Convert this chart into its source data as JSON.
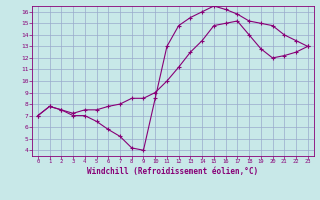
{
  "xlabel": "Windchill (Refroidissement éolien,°C)",
  "bg_color": "#c8e8e8",
  "grid_color": "#99aacc",
  "line_color": "#880077",
  "xlim": [
    -0.5,
    23.5
  ],
  "ylim": [
    3.5,
    16.5
  ],
  "xticks": [
    0,
    1,
    2,
    3,
    4,
    5,
    6,
    7,
    8,
    9,
    10,
    11,
    12,
    13,
    14,
    15,
    16,
    17,
    18,
    19,
    20,
    21,
    22,
    23
  ],
  "yticks": [
    4,
    5,
    6,
    7,
    8,
    9,
    10,
    11,
    12,
    13,
    14,
    15,
    16
  ],
  "series1_x": [
    0,
    1,
    2,
    3,
    4,
    5,
    6,
    7,
    8,
    9,
    10,
    11,
    12,
    13,
    14,
    15,
    16,
    17,
    18,
    19,
    20,
    21,
    22,
    23
  ],
  "series1_y": [
    7.0,
    7.8,
    7.5,
    7.0,
    7.0,
    6.5,
    5.8,
    5.2,
    4.2,
    4.0,
    8.5,
    13.0,
    14.8,
    15.5,
    16.0,
    16.5,
    16.2,
    15.8,
    15.2,
    15.0,
    14.8,
    14.0,
    13.5,
    13.0
  ],
  "series2_x": [
    0,
    1,
    2,
    3,
    4,
    5,
    6,
    7,
    8,
    9,
    10,
    11,
    12,
    13,
    14,
    15,
    16,
    17,
    18,
    19,
    20,
    21,
    22,
    23
  ],
  "series2_y": [
    7.0,
    7.8,
    7.5,
    7.2,
    7.5,
    7.5,
    7.8,
    8.0,
    8.5,
    8.5,
    9.0,
    10.0,
    11.2,
    12.5,
    13.5,
    14.8,
    15.0,
    15.2,
    14.0,
    12.8,
    12.0,
    12.2,
    12.5,
    13.0
  ]
}
